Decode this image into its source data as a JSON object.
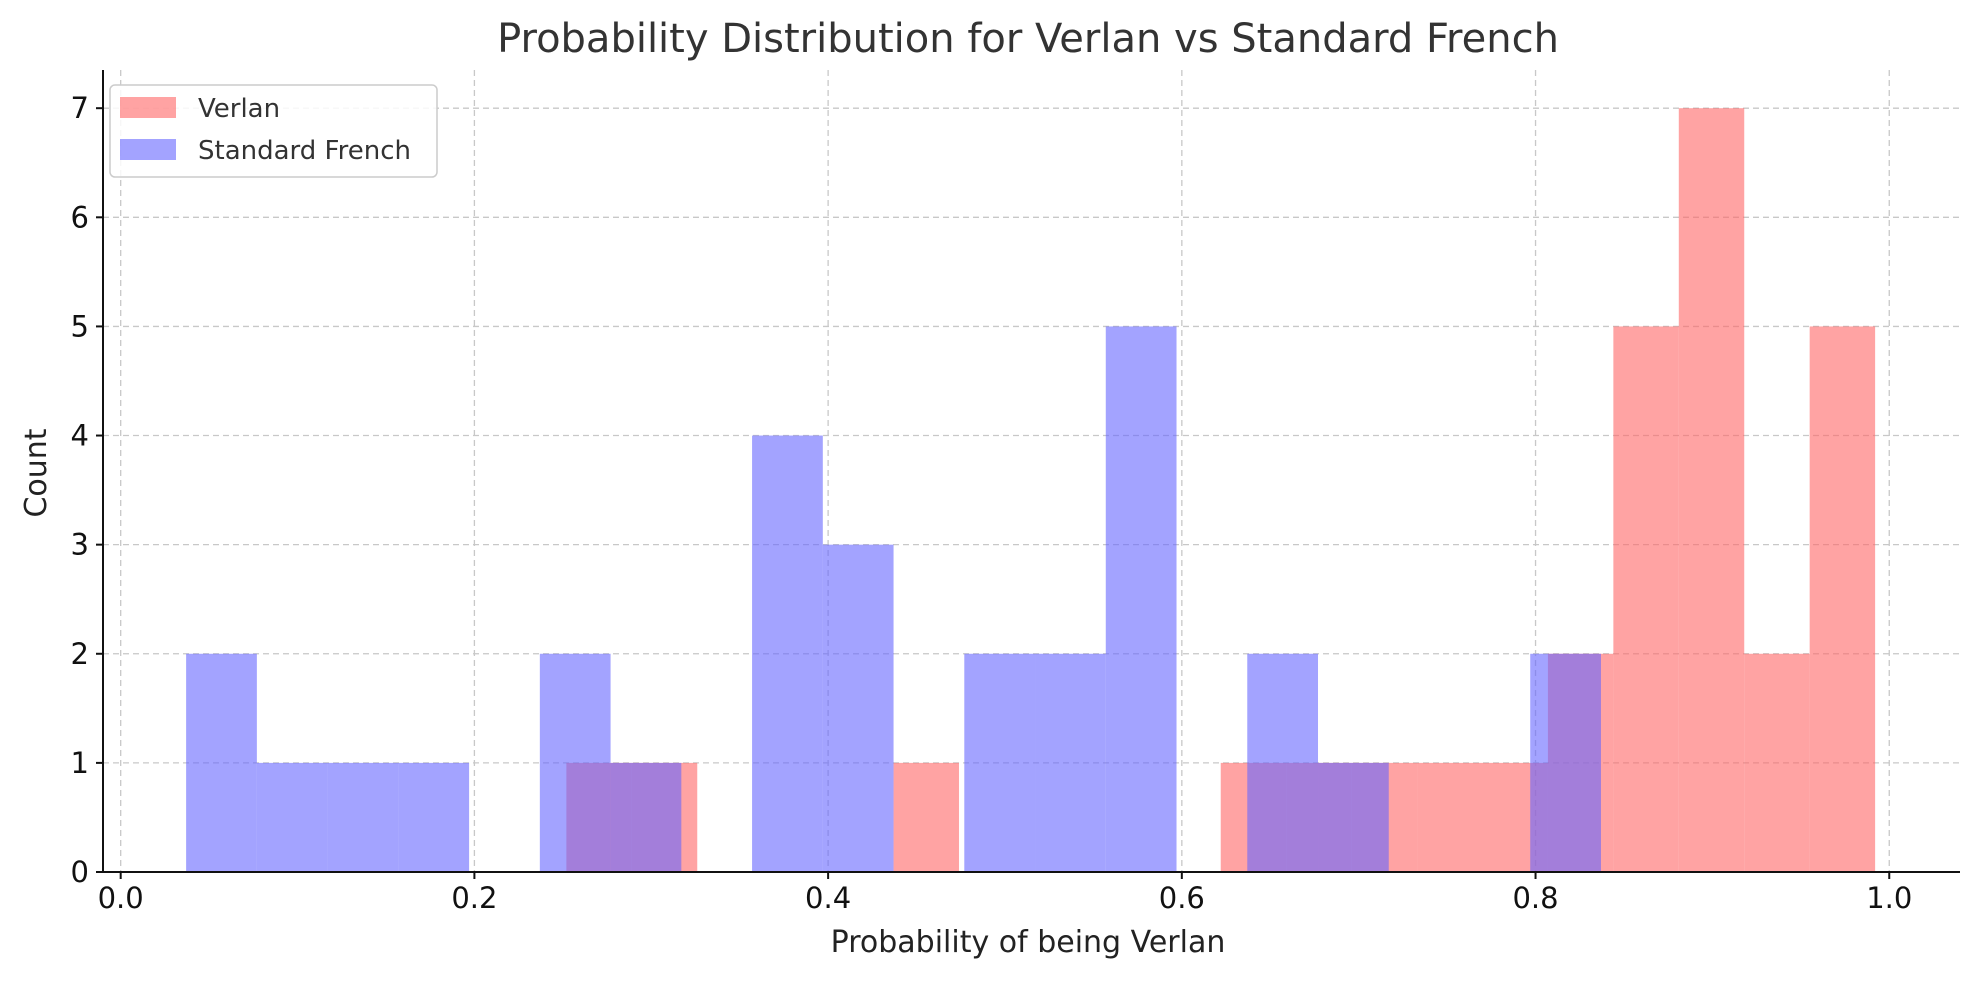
{
  "chart_data": {
    "type": "histogram",
    "title": "Probability Distribution for Verlan vs Standard French",
    "xlabel": "Probability of being Verlan",
    "ylabel": "Count",
    "xlim": [
      -0.01,
      1.04
    ],
    "ylim": [
      0,
      7.35
    ],
    "xticks": [
      0.0,
      0.2,
      0.4,
      0.6,
      0.8,
      1.0
    ],
    "xtick_labels": [
      "0.0",
      "0.2",
      "0.4",
      "0.6",
      "0.8",
      "1.0"
    ],
    "yticks": [
      0,
      1,
      2,
      3,
      4,
      5,
      6,
      7
    ],
    "ytick_labels": [
      "0",
      "1",
      "2",
      "3",
      "4",
      "5",
      "6",
      "7"
    ],
    "grid": true,
    "legend_position": "top-left",
    "series": [
      {
        "name": "Verlan",
        "color": "#ff6666",
        "bins": [
          {
            "x0": 0.252,
            "x1": 0.289,
            "count": 1
          },
          {
            "x0": 0.289,
            "x1": 0.326,
            "count": 1
          },
          {
            "x0": 0.437,
            "x1": 0.474,
            "count": 1
          },
          {
            "x0": 0.622,
            "x1": 0.659,
            "count": 1
          },
          {
            "x0": 0.659,
            "x1": 0.696,
            "count": 1
          },
          {
            "x0": 0.696,
            "x1": 0.733,
            "count": 1
          },
          {
            "x0": 0.733,
            "x1": 0.77,
            "count": 1
          },
          {
            "x0": 0.77,
            "x1": 0.807,
            "count": 1
          },
          {
            "x0": 0.807,
            "x1": 0.844,
            "count": 2
          },
          {
            "x0": 0.844,
            "x1": 0.881,
            "count": 5
          },
          {
            "x0": 0.881,
            "x1": 0.918,
            "count": 7
          },
          {
            "x0": 0.918,
            "x1": 0.955,
            "count": 2
          },
          {
            "x0": 0.955,
            "x1": 0.992,
            "count": 5
          }
        ]
      },
      {
        "name": "Standard French",
        "color": "#6666ff",
        "bins": [
          {
            "x0": 0.037,
            "x1": 0.077,
            "count": 2
          },
          {
            "x0": 0.077,
            "x1": 0.117,
            "count": 1
          },
          {
            "x0": 0.117,
            "x1": 0.157,
            "count": 1
          },
          {
            "x0": 0.157,
            "x1": 0.197,
            "count": 1
          },
          {
            "x0": 0.237,
            "x1": 0.277,
            "count": 2
          },
          {
            "x0": 0.277,
            "x1": 0.317,
            "count": 1
          },
          {
            "x0": 0.357,
            "x1": 0.397,
            "count": 4
          },
          {
            "x0": 0.397,
            "x1": 0.437,
            "count": 3
          },
          {
            "x0": 0.477,
            "x1": 0.517,
            "count": 2
          },
          {
            "x0": 0.517,
            "x1": 0.557,
            "count": 2
          },
          {
            "x0": 0.557,
            "x1": 0.597,
            "count": 5
          },
          {
            "x0": 0.637,
            "x1": 0.677,
            "count": 2
          },
          {
            "x0": 0.677,
            "x1": 0.717,
            "count": 1
          },
          {
            "x0": 0.797,
            "x1": 0.837,
            "count": 2
          }
        ]
      }
    ]
  }
}
